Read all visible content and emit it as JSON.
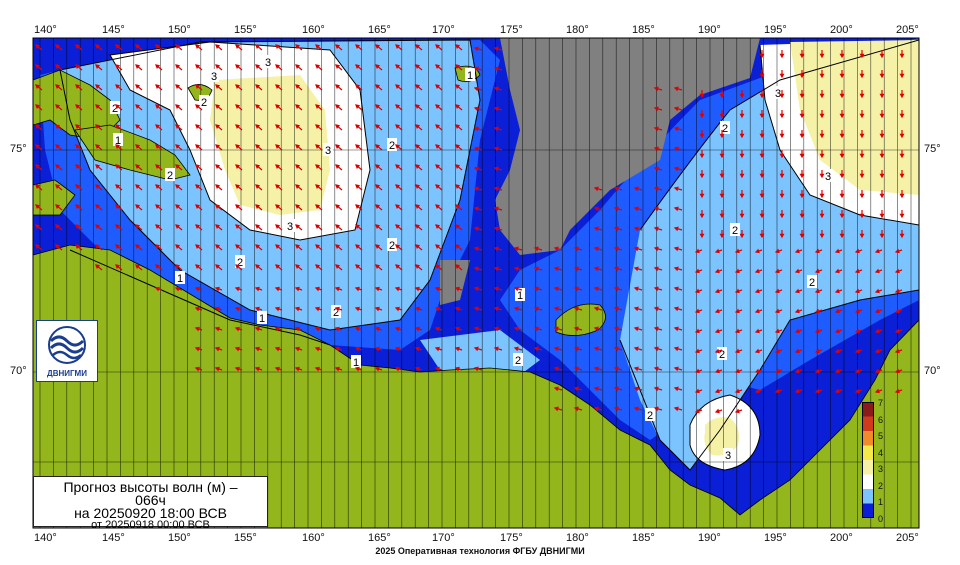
{
  "map": {
    "longitude_labels": [
      "140°",
      "145°",
      "150°",
      "155°",
      "160°",
      "165°",
      "170°",
      "175°",
      "180°",
      "185°",
      "190°",
      "195°",
      "200°",
      "205°"
    ],
    "latitude_labels": [
      "75°",
      "70°"
    ],
    "contour_labels": [
      "1",
      "2",
      "3"
    ],
    "colors": {
      "land": "#92b61c",
      "no_data": "#808080",
      "wave_0_1": "#0a1fd6",
      "wave_1_2": "#1f5cff",
      "wave_2_3": "#7cc4ff",
      "wave_3_4": "#ffffff",
      "wave_4_5": "#f5f2a8",
      "arrow": "#e00000"
    }
  },
  "legend": {
    "labels": [
      "7",
      "6",
      "5",
      "4",
      "3",
      "2",
      "1",
      "0"
    ],
    "colors": [
      "#8b1a1a",
      "#d23a1e",
      "#f08a2a",
      "#f5e84a",
      "#f5f2a8",
      "#ffffff",
      "#7cc4ff",
      "#0a1fd6"
    ]
  },
  "logo": {
    "text": "ДВНИГМИ"
  },
  "title": {
    "line1": "Прогноз высоты волн (м) –",
    "line2": "066ч",
    "line3": "на 20250920 18:00 ВСВ",
    "line4": "от 20250918 00:00 ВСВ"
  },
  "footer": "2025 Оперативная технология ФГБУ ДВНИГМИ"
}
